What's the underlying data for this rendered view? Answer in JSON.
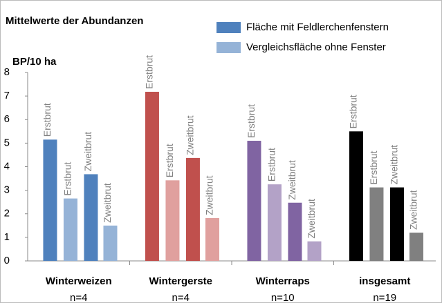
{
  "chart_data": {
    "type": "grouped-bar",
    "title": "Mittelwerte der Abundanzen",
    "y_label": "BP/10 ha",
    "ylim": [
      0,
      8
    ],
    "yticks": [
      0,
      1,
      2,
      3,
      4,
      5,
      6,
      7,
      8
    ],
    "grid": false,
    "legend": [
      {
        "name": "Fläche mit Feldlerchenfenstern",
        "color": "#4f81bd"
      },
      {
        "name": "Vergleichsfläche ohne Fenster",
        "color": "#95b3d7"
      }
    ],
    "groups": [
      {
        "name": "Winterweizen",
        "n": "n=4",
        "bars": [
          {
            "label": "Erstbrut",
            "value": 5.15,
            "color": "#4f81bd"
          },
          {
            "label": "Erstbrut",
            "value": 2.65,
            "color": "#95b3d7"
          },
          {
            "label": "Zweitbrut",
            "value": 3.68,
            "color": "#4f81bd"
          },
          {
            "label": "Zweitbrut",
            "value": 1.5,
            "color": "#95b3d7"
          }
        ]
      },
      {
        "name": "Wintergerste",
        "n": "n=4",
        "bars": [
          {
            "label": "Erstbrut",
            "value": 7.18,
            "color": "#c0504d"
          },
          {
            "label": "Erstbrut",
            "value": 3.42,
            "color": "#e0a09e"
          },
          {
            "label": "Zweitbrut",
            "value": 4.37,
            "color": "#c0504d"
          },
          {
            "label": "Zweitbrut",
            "value": 1.82,
            "color": "#e0a09e"
          }
        ]
      },
      {
        "name": "Winterraps",
        "n": "n=10",
        "bars": [
          {
            "label": "Erstbrut",
            "value": 5.1,
            "color": "#8064a2"
          },
          {
            "label": "Erstbrut",
            "value": 3.25,
            "color": "#b3a2c7"
          },
          {
            "label": "Zweitbrut",
            "value": 2.47,
            "color": "#8064a2"
          },
          {
            "label": "Zweitbrut",
            "value": 0.83,
            "color": "#b3a2c7"
          }
        ]
      },
      {
        "name": "insgesamt",
        "n": "n=19",
        "bars": [
          {
            "label": "Erstbrut",
            "value": 5.5,
            "color": "#000000"
          },
          {
            "label": "Erstbrut",
            "value": 3.12,
            "color": "#808080"
          },
          {
            "label": "Zweitbrut",
            "value": 3.12,
            "color": "#000000"
          },
          {
            "label": "Zweitbrut",
            "value": 1.2,
            "color": "#808080"
          }
        ]
      }
    ]
  }
}
